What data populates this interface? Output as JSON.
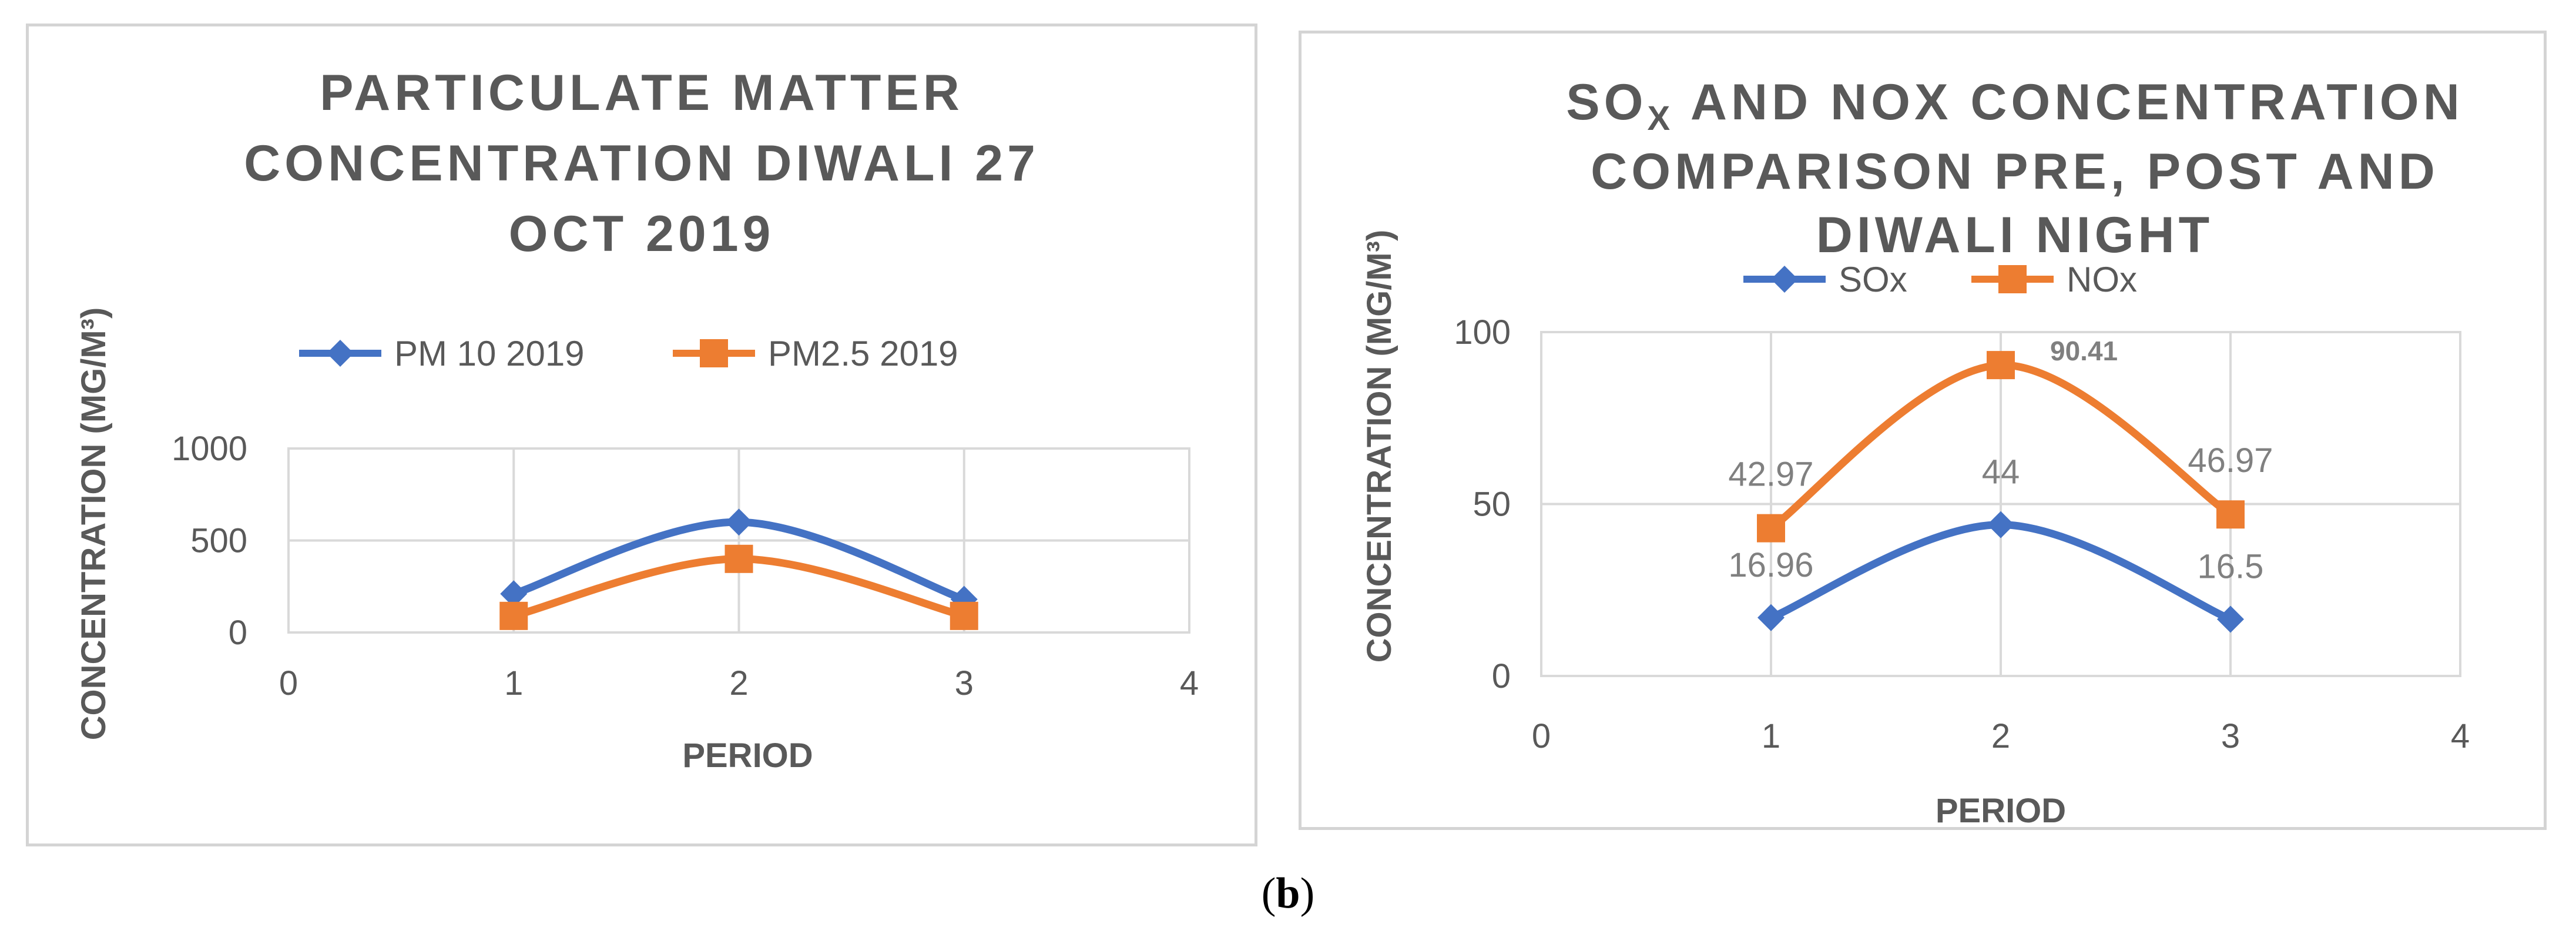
{
  "caption": {
    "open": "(",
    "letter": "b",
    "close": ")"
  },
  "chart_data": [
    {
      "type": "line",
      "title_lines": [
        "PARTICULATE MATTER",
        "CONCENTRATION DIWALI 27",
        "OCT 2019"
      ],
      "xlabel": "PERIOD",
      "ylabel": "CONCENTRATION (MG/M³)",
      "xlim": [
        0,
        4
      ],
      "ylim": [
        0,
        1000
      ],
      "xticks": [
        "0",
        "1",
        "2",
        "3",
        "4"
      ],
      "yticks": [
        "0",
        "500",
        "1000"
      ],
      "grid": true,
      "legend": "top",
      "series": [
        {
          "name": "PM 10 2019",
          "color": "#4472c4",
          "marker": "diamond",
          "x": [
            1,
            2,
            3
          ],
          "values": [
            210,
            600,
            180
          ],
          "labels": [
            "",
            "",
            ""
          ]
        },
        {
          "name": "PM2.5 2019",
          "color": "#ed7d31",
          "marker": "square",
          "x": [
            1,
            2,
            3
          ],
          "values": [
            90,
            400,
            90
          ],
          "labels": [
            "",
            "",
            ""
          ]
        }
      ]
    },
    {
      "type": "line",
      "title_lines": [
        "SO",
        "X",
        " AND NOX CONCENTRATION",
        "COMPARISON PRE, POST AND",
        "DIWALI NIGHT"
      ],
      "xlabel": "PERIOD",
      "ylabel": "CONCENTRATION (MG/M³)",
      "xlim": [
        0,
        4
      ],
      "ylim": [
        0,
        100
      ],
      "xticks": [
        "0",
        "1",
        "2",
        "3",
        "4"
      ],
      "yticks": [
        "0",
        "50",
        "100"
      ],
      "grid": true,
      "legend": "top",
      "series": [
        {
          "name": "SOx",
          "color": "#4472c4",
          "marker": "diamond",
          "x": [
            1,
            2,
            3
          ],
          "values": [
            16.96,
            44,
            16.5
          ],
          "labels": [
            "16.96",
            "44",
            "16.5"
          ]
        },
        {
          "name": "NOx",
          "color": "#ed7d31",
          "marker": "square",
          "x": [
            1,
            2,
            3
          ],
          "values": [
            42.97,
            90.41,
            46.97
          ],
          "labels": [
            "42.97",
            "90.41",
            "46.97"
          ]
        }
      ]
    }
  ]
}
